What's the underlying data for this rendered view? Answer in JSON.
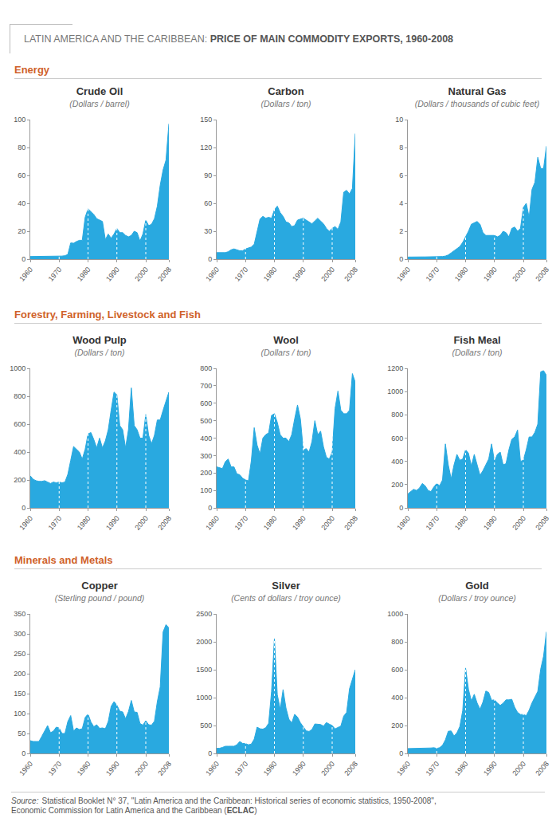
{
  "title": {
    "prefix": "LATIN AMERICA AND THE CARIBBEAN:",
    "main": "PRICE OF MAIN COMMODITY EXPORTS, 1960-2008"
  },
  "sections": [
    "Energy",
    "Forestry, Farming, Livestock and Fish",
    "Minerals and Metals"
  ],
  "source": {
    "label": "Source:",
    "line1": "Statistical Booklet N° 37, \"Latin America and the Caribbean: Historical series of economic statistics, 1950-2008\",",
    "line2": "Economic Commission for Latin America and the Caribbean (",
    "bold": "ECLAC",
    "end": ")"
  },
  "chart_data": [
    {
      "type": "area",
      "title": "Crude Oil",
      "subtitle": "(Dollars / barrel)",
      "color": "#29a9e0",
      "grid": true,
      "x": [
        1960,
        1961,
        1962,
        1963,
        1964,
        1965,
        1966,
        1967,
        1968,
        1969,
        1970,
        1971,
        1972,
        1973,
        1974,
        1975,
        1976,
        1977,
        1978,
        1979,
        1980,
        1981,
        1982,
        1983,
        1984,
        1985,
        1986,
        1987,
        1988,
        1989,
        1990,
        1991,
        1992,
        1993,
        1994,
        1995,
        1996,
        1997,
        1998,
        1999,
        2000,
        2001,
        2002,
        2003,
        2004,
        2005,
        2006,
        2007,
        2008
      ],
      "values": [
        1.9,
        1.9,
        1.9,
        1.9,
        1.8,
        1.8,
        1.8,
        1.8,
        1.8,
        1.8,
        1.8,
        2.2,
        2.5,
        3.3,
        11.6,
        11.4,
        12.6,
        13.5,
        13.5,
        30,
        36,
        34,
        32,
        29,
        28,
        27,
        14,
        18,
        15,
        18,
        22,
        19,
        19,
        17,
        16,
        17,
        20,
        19,
        13,
        18,
        28,
        24,
        25,
        29,
        38,
        53,
        64,
        71,
        97
      ],
      "xlim": [
        1960,
        2008
      ],
      "xticks": [
        1960,
        1970,
        1980,
        1990,
        2000,
        2008
      ],
      "ylim": [
        0,
        100
      ],
      "yticks": [
        0,
        20,
        40,
        60,
        80,
        100
      ]
    },
    {
      "type": "area",
      "title": "Carbon",
      "subtitle": "(Dollars / ton)",
      "color": "#29a9e0",
      "grid": true,
      "x": [
        1960,
        1961,
        1962,
        1963,
        1964,
        1965,
        1966,
        1967,
        1968,
        1969,
        1970,
        1971,
        1972,
        1973,
        1974,
        1975,
        1976,
        1977,
        1978,
        1979,
        1980,
        1981,
        1982,
        1983,
        1984,
        1985,
        1986,
        1987,
        1988,
        1989,
        1990,
        1991,
        1992,
        1993,
        1994,
        1995,
        1996,
        1997,
        1998,
        1999,
        2000,
        2001,
        2002,
        2003,
        2004,
        2005,
        2006,
        2007,
        2008
      ],
      "values": [
        7,
        7,
        7,
        7,
        8,
        10,
        11,
        10,
        9,
        9,
        11,
        12,
        13,
        16,
        30,
        43,
        46,
        44,
        45,
        44,
        53,
        57,
        50,
        46,
        40,
        39,
        35,
        36,
        42,
        43,
        44,
        42,
        40,
        38,
        41,
        44,
        41,
        38,
        33,
        30,
        33,
        35,
        32,
        40,
        72,
        74,
        70,
        76,
        135
      ],
      "xlim": [
        1960,
        2008
      ],
      "xticks": [
        1960,
        1970,
        1980,
        1990,
        2000,
        2008
      ],
      "ylim": [
        0,
        150
      ],
      "yticks": [
        0,
        30,
        60,
        90,
        120,
        150
      ]
    },
    {
      "type": "area",
      "title": "Natural Gas",
      "subtitle": "(Dollars / thousands of cubic feet)",
      "color": "#29a9e0",
      "grid": true,
      "x": [
        1960,
        1961,
        1962,
        1963,
        1964,
        1965,
        1966,
        1967,
        1968,
        1969,
        1970,
        1971,
        1972,
        1973,
        1974,
        1975,
        1976,
        1977,
        1978,
        1979,
        1980,
        1981,
        1982,
        1983,
        1984,
        1985,
        1986,
        1987,
        1988,
        1989,
        1990,
        1991,
        1992,
        1993,
        1994,
        1995,
        1996,
        1997,
        1998,
        1999,
        2000,
        2001,
        2002,
        2003,
        2004,
        2005,
        2006,
        2007,
        2008
      ],
      "values": [
        0.15,
        0.16,
        0.16,
        0.16,
        0.16,
        0.16,
        0.16,
        0.16,
        0.16,
        0.17,
        0.17,
        0.18,
        0.19,
        0.22,
        0.3,
        0.45,
        0.6,
        0.8,
        0.9,
        1.2,
        1.6,
        2.0,
        2.5,
        2.6,
        2.7,
        2.5,
        1.9,
        1.7,
        1.7,
        1.7,
        1.7,
        1.6,
        1.7,
        2.0,
        1.9,
        1.6,
        2.2,
        2.3,
        2.0,
        2.2,
        3.7,
        4.0,
        3.0,
        5.0,
        5.5,
        7.3,
        6.5,
        6.5,
        8.1
      ],
      "xlim": [
        1960,
        2008
      ],
      "xticks": [
        1960,
        1970,
        1980,
        1990,
        2000,
        2008
      ],
      "ylim": [
        0,
        10
      ],
      "yticks": [
        0,
        2,
        4,
        6,
        8,
        10
      ]
    },
    {
      "type": "area",
      "title": "Wood Pulp",
      "subtitle": "(Dollars / ton)",
      "color": "#29a9e0",
      "grid": true,
      "x": [
        1960,
        1961,
        1962,
        1963,
        1964,
        1965,
        1966,
        1967,
        1968,
        1969,
        1970,
        1971,
        1972,
        1973,
        1974,
        1975,
        1976,
        1977,
        1978,
        1979,
        1980,
        1981,
        1982,
        1983,
        1984,
        1985,
        1986,
        1987,
        1988,
        1989,
        1990,
        1991,
        1992,
        1993,
        1994,
        1995,
        1996,
        1997,
        1998,
        1999,
        2000,
        2001,
        2002,
        2003,
        2004,
        2005,
        2006,
        2007,
        2008
      ],
      "values": [
        230,
        205,
        195,
        190,
        190,
        195,
        185,
        175,
        185,
        180,
        185,
        180,
        185,
        240,
        340,
        440,
        420,
        400,
        350,
        420,
        530,
        540,
        490,
        430,
        500,
        430,
        480,
        560,
        700,
        830,
        810,
        590,
        560,
        430,
        560,
        860,
        590,
        560,
        500,
        500,
        670,
        520,
        460,
        520,
        630,
        630,
        700,
        760,
        830
      ],
      "xlim": [
        1960,
        2008
      ],
      "xticks": [
        1960,
        1970,
        1980,
        1990,
        2000,
        2008
      ],
      "ylim": [
        0,
        1000
      ],
      "yticks": [
        0,
        200,
        400,
        600,
        800,
        1000
      ]
    },
    {
      "type": "area",
      "title": "Wool",
      "subtitle": "(Dollars / ton)",
      "color": "#29a9e0",
      "grid": true,
      "x": [
        1960,
        1961,
        1962,
        1963,
        1964,
        1965,
        1966,
        1967,
        1968,
        1969,
        1970,
        1971,
        1972,
        1973,
        1974,
        1975,
        1976,
        1977,
        1978,
        1979,
        1980,
        1981,
        1982,
        1983,
        1984,
        1985,
        1986,
        1987,
        1988,
        1989,
        1990,
        1991,
        1992,
        1993,
        1994,
        1995,
        1996,
        1997,
        1998,
        1999,
        2000,
        2001,
        2002,
        2003,
        2004,
        2005,
        2006,
        2007,
        2008
      ],
      "values": [
        235,
        230,
        225,
        265,
        280,
        235,
        235,
        195,
        190,
        170,
        160,
        155,
        270,
        460,
        360,
        310,
        400,
        420,
        430,
        530,
        540,
        490,
        420,
        400,
        400,
        380,
        420,
        510,
        590,
        510,
        330,
        340,
        320,
        380,
        500,
        420,
        440,
        350,
        290,
        280,
        320,
        570,
        670,
        560,
        540,
        540,
        560,
        770,
        720
      ],
      "xlim": [
        1960,
        2008
      ],
      "xticks": [
        1960,
        1970,
        1980,
        1990,
        2000,
        2008
      ],
      "ylim": [
        0,
        800
      ],
      "yticks": [
        0,
        100,
        200,
        300,
        400,
        500,
        600,
        700,
        800
      ]
    },
    {
      "type": "area",
      "title": "Fish Meal",
      "subtitle": "(Dollars / ton)",
      "color": "#29a9e0",
      "grid": true,
      "x": [
        1960,
        1961,
        1962,
        1963,
        1964,
        1965,
        1966,
        1967,
        1968,
        1969,
        1970,
        1971,
        1972,
        1973,
        1974,
        1975,
        1976,
        1977,
        1978,
        1979,
        1980,
        1981,
        1982,
        1983,
        1984,
        1985,
        1986,
        1987,
        1988,
        1989,
        1990,
        1991,
        1992,
        1993,
        1994,
        1995,
        1996,
        1997,
        1998,
        1999,
        2000,
        2001,
        2002,
        2003,
        2004,
        2005,
        2006,
        2007,
        2008
      ],
      "values": [
        120,
        140,
        160,
        150,
        170,
        210,
        190,
        150,
        140,
        180,
        210,
        190,
        240,
        550,
        370,
        250,
        370,
        460,
        410,
        420,
        500,
        470,
        360,
        460,
        370,
        280,
        320,
        370,
        420,
        550,
        400,
        460,
        480,
        370,
        380,
        500,
        590,
        610,
        670,
        400,
        410,
        500,
        610,
        610,
        650,
        720,
        1170,
        1180,
        1140
      ],
      "xlim": [
        1960,
        2008
      ],
      "xticks": [
        1960,
        1970,
        1980,
        1990,
        2000,
        2008
      ],
      "ylim": [
        0,
        1200
      ],
      "yticks": [
        0,
        200,
        400,
        600,
        800,
        1000,
        1200
      ]
    },
    {
      "type": "area",
      "title": "Copper",
      "subtitle": "(Sterling pound / pound)",
      "color": "#29a9e0",
      "grid": true,
      "x": [
        1960,
        1961,
        1962,
        1963,
        1964,
        1965,
        1966,
        1967,
        1968,
        1969,
        1970,
        1971,
        1972,
        1973,
        1974,
        1975,
        1976,
        1977,
        1978,
        1979,
        1980,
        1981,
        1982,
        1983,
        1984,
        1985,
        1986,
        1987,
        1988,
        1989,
        1990,
        1991,
        1992,
        1993,
        1994,
        1995,
        1996,
        1997,
        1998,
        1999,
        2000,
        2001,
        2002,
        2003,
        2004,
        2005,
        2006,
        2007,
        2008
      ],
      "values": [
        32,
        30,
        30,
        30,
        43,
        58,
        70,
        52,
        56,
        66,
        64,
        50,
        50,
        80,
        95,
        56,
        64,
        60,
        62,
        90,
        99,
        79,
        67,
        72,
        63,
        64,
        62,
        80,
        118,
        130,
        121,
        106,
        104,
        87,
        105,
        133,
        104,
        103,
        75,
        71,
        82,
        72,
        71,
        81,
        130,
        167,
        305,
        323,
        315
      ],
      "xlim": [
        1960,
        2008
      ],
      "xticks": [
        1960,
        1970,
        1980,
        1990,
        2000,
        2008
      ],
      "ylim": [
        0,
        350
      ],
      "yticks": [
        0,
        50,
        100,
        150,
        200,
        250,
        300,
        350
      ]
    },
    {
      "type": "area",
      "title": "Silver",
      "subtitle": "(Cents of dollars / troy ounce)",
      "color": "#29a9e0",
      "grid": true,
      "x": [
        1960,
        1961,
        1962,
        1963,
        1964,
        1965,
        1966,
        1967,
        1968,
        1969,
        1970,
        1971,
        1972,
        1973,
        1974,
        1975,
        1976,
        1977,
        1978,
        1979,
        1980,
        1981,
        1982,
        1983,
        1984,
        1985,
        1986,
        1987,
        1988,
        1989,
        1990,
        1991,
        1992,
        1993,
        1994,
        1995,
        1996,
        1997,
        1998,
        1999,
        2000,
        2001,
        2002,
        2003,
        2004,
        2005,
        2006,
        2007,
        2008
      ],
      "values": [
        91,
        92,
        108,
        128,
        129,
        129,
        129,
        155,
        214,
        179,
        177,
        155,
        168,
        256,
        471,
        442,
        435,
        462,
        540,
        1109,
        2064,
        1052,
        794,
        1144,
        814,
        614,
        546,
        701,
        652,
        550,
        482,
        405,
        394,
        430,
        528,
        519,
        518,
        490,
        553,
        525,
        500,
        440,
        462,
        491,
        669,
        734,
        1157,
        1340,
        1500
      ],
      "xlim": [
        1960,
        2008
      ],
      "xticks": [
        1960,
        1970,
        1980,
        1990,
        2000,
        2008
      ],
      "ylim": [
        0,
        2500
      ],
      "yticks": [
        0,
        500,
        1000,
        1500,
        2000,
        2500
      ]
    },
    {
      "type": "area",
      "title": "Gold",
      "subtitle": "(Dollars / troy ounce)",
      "color": "#29a9e0",
      "grid": true,
      "x": [
        1960,
        1961,
        1962,
        1963,
        1964,
        1965,
        1966,
        1967,
        1968,
        1969,
        1970,
        1971,
        1972,
        1973,
        1974,
        1975,
        1976,
        1977,
        1978,
        1979,
        1980,
        1981,
        1982,
        1983,
        1984,
        1985,
        1986,
        1987,
        1988,
        1989,
        1990,
        1991,
        1992,
        1993,
        1994,
        1995,
        1996,
        1997,
        1998,
        1999,
        2000,
        2001,
        2002,
        2003,
        2004,
        2005,
        2006,
        2007,
        2008
      ],
      "values": [
        35,
        35,
        35,
        35,
        35,
        35,
        35,
        35,
        39,
        41,
        36,
        41,
        58,
        97,
        159,
        161,
        125,
        148,
        193,
        307,
        612,
        460,
        376,
        424,
        361,
        317,
        368,
        447,
        437,
        381,
        384,
        362,
        344,
        360,
        384,
        384,
        388,
        331,
        294,
        279,
        279,
        271,
        310,
        363,
        409,
        445,
        604,
        697,
        872
      ],
      "xlim": [
        1960,
        2008
      ],
      "xticks": [
        1960,
        1970,
        1980,
        1990,
        2000,
        2008
      ],
      "ylim": [
        0,
        1000
      ],
      "yticks": [
        0,
        200,
        400,
        600,
        800,
        1000
      ]
    }
  ]
}
